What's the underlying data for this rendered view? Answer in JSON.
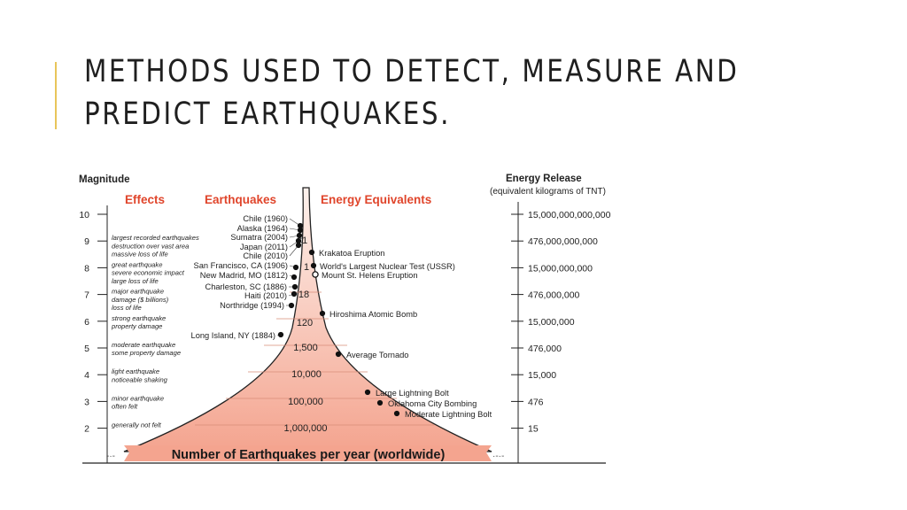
{
  "slide": {
    "title_line1": "Methods used to detect, measure and",
    "title_line2": "predict earthquakes.",
    "accent_color": "#e8c55a"
  },
  "figure": {
    "magnitude_header": "Magnitude",
    "energy_header": "Energy Release",
    "energy_subheader": "(equivalent kilograms of TNT)",
    "effects_header": "Effects",
    "earthquakes_header": "Earthquakes",
    "equivalents_header": "Energy Equivalents",
    "bottom_banner": "Number of Earthquakes per year (worldwide)",
    "colors": {
      "header_red": "#e0452b",
      "fill_top": "#fbe3da",
      "fill_bottom": "#f4a48f",
      "stroke": "#222222"
    },
    "magnitudes": [
      "10",
      "9",
      "8",
      "7",
      "6",
      "5",
      "4",
      "3",
      "2"
    ],
    "energies": [
      "15,000,000,000,000",
      "476,000,000,000",
      "15,000,000,000",
      "476,000,000",
      "15,000,000",
      "476,000",
      "15,000",
      "476",
      "15"
    ],
    "effects": [
      {
        "lines": [
          "largest recorded earthquakes",
          "destruction over vast area",
          "massive loss of life"
        ]
      },
      {
        "lines": [
          "great earthquake",
          "severe economic impact",
          "large loss of life"
        ]
      },
      {
        "lines": [
          "major earthquake",
          "damage ($ billions)",
          "loss of life"
        ]
      },
      {
        "lines": [
          "strong earthquake",
          "property damage"
        ]
      },
      {
        "lines": [
          "moderate earthquake",
          "some property damage"
        ]
      },
      {
        "lines": [
          "light earthquake",
          "noticeable shaking"
        ]
      },
      {
        "lines": [
          "minor earthquake",
          "often felt"
        ]
      },
      {
        "lines": [
          "generally not felt"
        ]
      }
    ],
    "annual_counts": [
      "<1",
      "1",
      "18",
      "120",
      "1,500",
      "10,000",
      "100,000",
      "1,000,000"
    ],
    "earthquakes": [
      "Chile (1960)",
      "Alaska (1964)",
      "Sumatra (2004)",
      "Japan (2011)",
      "Chile (2010)",
      "San Francisco, CA (1906)",
      "New Madrid, MO (1812)",
      "Charleston, SC (1886)",
      "Haiti (2010)",
      "Northridge (1994)",
      "Long Island, NY (1884)"
    ],
    "equivalents": [
      "Krakatoa Eruption",
      "World's Largest Nuclear Test (USSR)",
      "Mount St. Helens Eruption",
      "Hiroshima Atomic Bomb",
      "Average Tornado",
      "Large Lightning Bolt",
      "Oklahoma City Bombing",
      "Moderate Lightning Bolt"
    ]
  }
}
